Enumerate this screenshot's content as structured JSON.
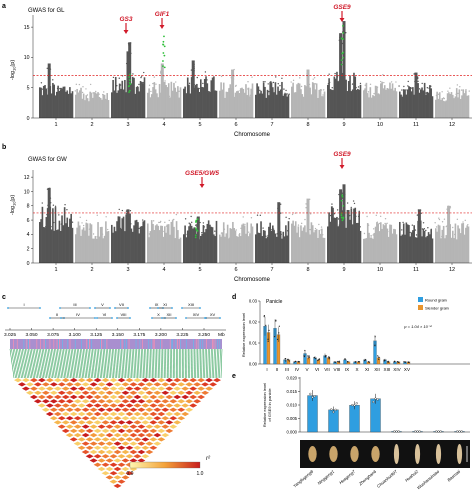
{
  "panel_a": {
    "letter": "a",
    "title": "GWAS for GL",
    "ylabel": "-log10(p)",
    "ylabel_main": "-log",
    "ylabel_sub": "10",
    "ylabel_tail": "(p)",
    "xlabel": "Chromosome",
    "yticks": [
      "0",
      "5",
      "10",
      "15"
    ],
    "chromosomes": [
      "1",
      "2",
      "3",
      "4",
      "5",
      "6",
      "7",
      "8",
      "9",
      "10",
      "11",
      "12"
    ],
    "genes": [
      {
        "name": "GS3",
        "chrom": 3
      },
      {
        "name": "GIF1",
        "chrom": 4
      },
      {
        "name": "GSE9",
        "chrom": 9
      }
    ],
    "threshold": 7
  },
  "panel_b": {
    "letter": "b",
    "title": "GWAS for GW",
    "ylabel_main": "-log",
    "ylabel_sub": "10",
    "ylabel_tail": "(p)",
    "xlabel": "Chromosome",
    "yticks": [
      "0",
      "2",
      "4",
      "6",
      "8",
      "10",
      "12"
    ],
    "chromosomes": [
      "1",
      "2",
      "3",
      "4",
      "5",
      "6",
      "7",
      "8",
      "9",
      "10",
      "11",
      "12"
    ],
    "genes": [
      {
        "name": "GSE5/GW5",
        "chrom": 5
      },
      {
        "name": "GSE9",
        "chrom": 9
      }
    ],
    "threshold": 7
  },
  "panel_c": {
    "letter": "c",
    "blocks": [
      "I",
      "II",
      "III",
      "IV",
      "V",
      "VI",
      "VII",
      "VIII",
      "IX",
      "X",
      "XI",
      "XII",
      "XIII",
      "XIV",
      "XV"
    ],
    "xticks": [
      "3.025",
      "3.050",
      "3.075",
      "3.100",
      "3.125",
      "3.150",
      "3.175",
      "3.200",
      "3.225",
      "3.250"
    ],
    "xunit": "Mb",
    "legend_min": "0.0",
    "legend_max": "1.0",
    "legend_label": "r²"
  },
  "panel_d": {
    "letter": "d",
    "inset_label": "Panicle",
    "ylabel": "Relative expression level",
    "yticks": [
      "0.00",
      "0.01",
      "0.02",
      "0.03"
    ],
    "categories": [
      "I",
      "II",
      "III",
      "IV",
      "V",
      "VI",
      "VII",
      "VIII",
      "IX",
      "X",
      "XI",
      "XII",
      "XIII",
      "XIV",
      "XV"
    ],
    "legend": [
      {
        "name": "Round grain",
        "color": "#2f9ee0"
      },
      {
        "name": "Slender grain",
        "color": "#e8952e"
      }
    ],
    "pvalue": "p = 1.04 × 10⁻⁴"
  },
  "panel_e": {
    "letter": "e",
    "ylabel_line1": "Relative expression level",
    "ylabel_line2": "of GSE9 in panicle",
    "yticks": [
      "0.000",
      "0.005",
      "0.010",
      "0.015",
      "0.020"
    ],
    "varieties": [
      "Yangfugeng8",
      "Ninggeng1",
      "Huageng7",
      "Zhenghan6",
      "Chuanhui907",
      "Huahui2",
      "Wushansimiao",
      "Basmati"
    ],
    "bar_color": "#2f9ee0"
  },
  "chart_data": [
    {
      "type": "bar",
      "panel": "d",
      "categories": [
        "I",
        "II",
        "III",
        "IV",
        "V",
        "VI",
        "VII",
        "VIII",
        "IX",
        "X",
        "XI",
        "XII",
        "XIII",
        "XIV",
        "XV"
      ],
      "series": [
        {
          "name": "Round grain",
          "values": [
            0.018,
            0.017,
            0.002,
            0.001,
            0.005,
            0.003,
            0.004,
            0.001,
            0.002,
            0.001,
            0.002,
            0.011,
            0.002,
            0.001,
            0.001
          ]
        },
        {
          "name": "Slender grain",
          "values": [
            0.015,
            0.014,
            0.002,
            0.001,
            0.003,
            0.002,
            0.003,
            0.001,
            0.001,
            0.001,
            0.001,
            0.003,
            0.001,
            0.001,
            0.001
          ]
        }
      ],
      "ylim": [
        0,
        0.03
      ]
    },
    {
      "type": "bar",
      "panel": "e",
      "categories": [
        "Yangfugeng8",
        "Ninggeng1",
        "Huageng7",
        "Zhenghan6",
        "Chuanhui907",
        "Huahui2",
        "Wushansimiao",
        "Basmati"
      ],
      "values": [
        0.0135,
        0.0082,
        0.0099,
        0.0123,
        0.0002,
        0.0002,
        0.0002,
        0.0002
      ],
      "ylim": [
        0,
        0.02
      ]
    }
  ]
}
